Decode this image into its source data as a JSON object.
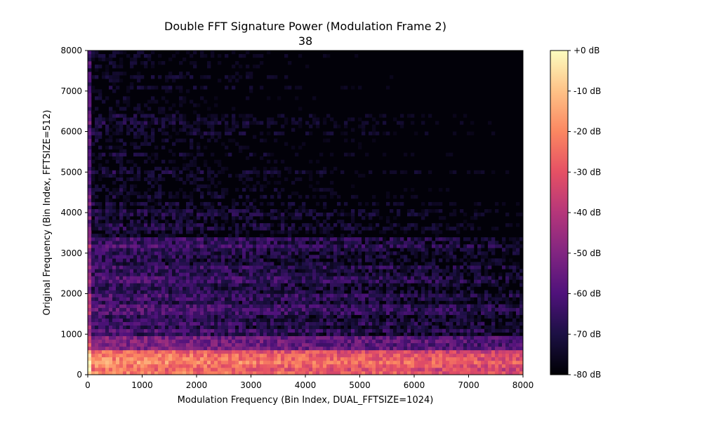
{
  "chart_data": {
    "type": "heatmap",
    "title": "Double FFT Signature Power (Modulation Frame 2)",
    "subtitle": "38",
    "xlabel": "Modulation Frequency (Bin Index, DUAL_FFTSIZE=1024)",
    "ylabel": "Original Frequency (Bin Index, FFTSIZE=512)",
    "xlim": [
      0,
      8000
    ],
    "ylim": [
      0,
      8000
    ],
    "x_ticks": [
      0,
      1000,
      2000,
      3000,
      4000,
      5000,
      6000,
      7000,
      8000
    ],
    "y_ticks": [
      0,
      1000,
      2000,
      3000,
      4000,
      5000,
      6000,
      7000,
      8000
    ],
    "x_tick_labels": [
      "0",
      "1000",
      "2000",
      "3000",
      "4000",
      "5000",
      "6000",
      "7000",
      "8000"
    ],
    "y_tick_labels": [
      "0",
      "1000",
      "2000",
      "3000",
      "4000",
      "5000",
      "6000",
      "7000",
      "8000"
    ],
    "colormap": "magma",
    "colorbar": {
      "range_db": [
        -80,
        0
      ],
      "ticks": [
        0,
        -10,
        -20,
        -30,
        -40,
        -50,
        -60,
        -70,
        -80
      ],
      "tick_labels": [
        "+0 dB",
        "-10 dB",
        "-20 dB",
        "-30 dB",
        "-40 dB",
        "-50 dB",
        "-60 dB",
        "-70 dB",
        "-80 dB"
      ]
    },
    "grid": false,
    "approx_power_profile_db": {
      "y_bands": [
        {
          "y_range": [
            0,
            600
          ],
          "level_db": -22
        },
        {
          "y_range": [
            600,
            1000
          ],
          "level_db": -52
        },
        {
          "y_range": [
            1000,
            2000
          ],
          "level_db": -62
        },
        {
          "y_range": [
            2000,
            3400
          ],
          "level_db": -64
        },
        {
          "y_range": [
            3400,
            4300
          ],
          "level_db": -72
        },
        {
          "y_range": [
            4300,
            6500
          ],
          "level_db": -75
        },
        {
          "y_range": [
            6500,
            8000
          ],
          "level_db": -79
        }
      ],
      "x_rolloff_db_per_1000": 1.5
    },
    "colors": {
      "background": "#ffffff",
      "axis": "#000000"
    }
  }
}
